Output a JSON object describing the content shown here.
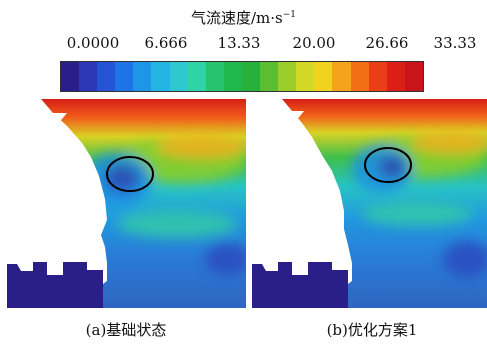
{
  "legend": {
    "title": "气流速度/m·s",
    "title_exponent": "−1",
    "ticks": [
      "0.0000",
      "6.666",
      "13.33",
      "20.00",
      "26.66",
      "33.33"
    ],
    "colors": [
      "#2a1f88",
      "#2b37b5",
      "#2453d6",
      "#1e74e4",
      "#1e96e8",
      "#25b5e4",
      "#2ec9d0",
      "#30d2a7",
      "#27c46e",
      "#1fb84d",
      "#27b03a",
      "#5bbd31",
      "#9bcd2a",
      "#d2d925",
      "#f0d21f",
      "#f5a31c",
      "#f26f18",
      "#ea3e16",
      "#dc1f16",
      "#c8141a"
    ],
    "span": "0–33.33"
  },
  "panels": [
    {
      "caption": "(a)基础状态"
    },
    {
      "caption": "(b)优化方案1"
    }
  ]
}
